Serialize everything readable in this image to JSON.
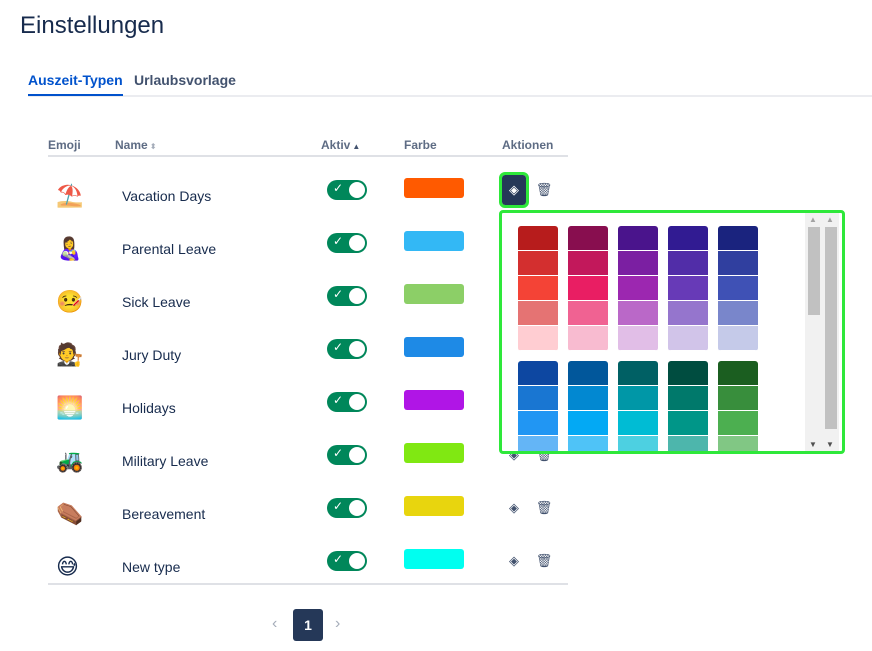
{
  "header": {
    "title": "Einstellungen"
  },
  "tabs": [
    {
      "label": "Auszeit-Typen",
      "active": true
    },
    {
      "label": "Urlaubsvorlage",
      "active": false
    }
  ],
  "table": {
    "columns": {
      "emoji": "Emoji",
      "name": "Name",
      "active": "Aktiv",
      "color": "Farbe",
      "actions": "Aktionen"
    },
    "rows": [
      {
        "emoji": "⛱️",
        "name": "Vacation Days",
        "active": true,
        "color": "#ff5a00"
      },
      {
        "emoji": "👩‍🍼",
        "name": "Parental Leave",
        "active": true,
        "color": "#33b8f5"
      },
      {
        "emoji": "🤒",
        "name": "Sick Leave",
        "active": true,
        "color": "#8ccf67"
      },
      {
        "emoji": "🧑‍⚖️",
        "name": "Jury Duty",
        "active": true,
        "color": "#1e8ae6"
      },
      {
        "emoji": "🌅",
        "name": "Holidays",
        "active": true,
        "color": "#b015e6"
      },
      {
        "emoji": "🚜",
        "name": "Military Leave",
        "active": true,
        "color": "#80e812"
      },
      {
        "emoji": "⚰️",
        "name": "Bereavement",
        "active": true,
        "color": "#e8d50e"
      },
      {
        "emoji": "😅",
        "name": "New type",
        "active": true,
        "color": "#00fff0"
      }
    ]
  },
  "pagination": {
    "current": "1",
    "prev_icon": "chevron-left-icon",
    "next_icon": "chevron-right-icon"
  },
  "color_picker": {
    "groups": [
      [
        [
          "#b71c1c",
          "#d32f2f",
          "#f44336",
          "#e57373",
          "#ffcdd2"
        ],
        [
          "#880e4f",
          "#c2185b",
          "#e91e63",
          "#f06292",
          "#f8bbd0"
        ],
        [
          "#4a148c",
          "#7b1fa2",
          "#9c27b0",
          "#ba68c8",
          "#e1bee7"
        ],
        [
          "#311b92",
          "#512da8",
          "#673ab7",
          "#9575cd",
          "#d1c4e9"
        ],
        [
          "#1a237e",
          "#303f9f",
          "#3f51b5",
          "#7986cb",
          "#c5cae9"
        ]
      ],
      [
        [
          "#0d47a1",
          "#1976d2",
          "#2196f3",
          "#64b5f6"
        ],
        [
          "#01579b",
          "#0288d1",
          "#03a9f4",
          "#4fc3f7"
        ],
        [
          "#006064",
          "#0097a7",
          "#00bcd4",
          "#4dd0e1"
        ],
        [
          "#004d40",
          "#00796b",
          "#009688",
          "#4db6ac"
        ],
        [
          "#1b5e20",
          "#388e3c",
          "#4caf50",
          "#81c784"
        ]
      ]
    ]
  },
  "colors": {
    "accent": "#0052cc",
    "toggle_on": "#00875a",
    "highlight": "#2ee83a",
    "dark": "#253858"
  }
}
